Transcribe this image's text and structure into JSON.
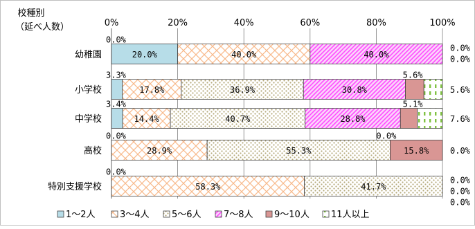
{
  "chart_data": {
    "type": "bar",
    "stacked": true,
    "percent": true,
    "orientation": "horizontal",
    "title": "",
    "category_axis_title": "校種別\n（延べ人数）",
    "xlim": [
      0,
      100
    ],
    "x_ticks": [
      "0%",
      "20%",
      "40%",
      "60%",
      "80%",
      "100%"
    ],
    "categories": [
      "幼稚園",
      "小学校",
      "中学校",
      "高校",
      "特別支援学校"
    ],
    "legend_position": "bottom",
    "series": [
      {
        "name": "1〜2人",
        "color": "#b7dde8",
        "pattern": "solid",
        "values": [
          20.0,
          3.3,
          3.4,
          0.0,
          0.0
        ]
      },
      {
        "name": "3〜4人",
        "color": "#f9c7a3",
        "pattern": "crosshatch",
        "values": [
          40.0,
          17.8,
          14.4,
          28.9,
          58.3
        ]
      },
      {
        "name": "5〜6人",
        "color": "#c4bd97",
        "pattern": "dots",
        "values": [
          0.0,
          36.9,
          40.7,
          55.3,
          41.7
        ]
      },
      {
        "name": "7〜8人",
        "color": "#ff66ff",
        "pattern": "diagonal",
        "values": [
          40.0,
          30.8,
          28.8,
          0.0,
          0.0
        ]
      },
      {
        "name": "9〜10人",
        "color": "#d99694",
        "pattern": "solid",
        "values": [
          0.0,
          5.6,
          5.1,
          15.8,
          0.0
        ]
      },
      {
        "name": "11人以上",
        "color": "#92d050",
        "pattern": "dashes",
        "values": [
          0.0,
          5.6,
          7.6,
          0.0,
          0.0
        ]
      }
    ],
    "labels": {
      "幼稚園": {
        "inside": [
          "20.0%",
          "40.0%",
          "",
          "40.0%",
          "",
          ""
        ],
        "above": "0.0%",
        "right": [
          "0.0%",
          "0.0%"
        ]
      },
      "小学校": {
        "inside": [
          "",
          "17.8%",
          "36.9%",
          "30.8%",
          "",
          ""
        ],
        "above": "3.3%",
        "above_right": "5.6%",
        "right": [
          "5.6%"
        ]
      },
      "中学校": {
        "inside": [
          "",
          "14.4%",
          "40.7%",
          "28.8%",
          "",
          ""
        ],
        "above": "3.4%",
        "above_right": "5.1%",
        "right": [
          "7.6%"
        ]
      },
      "高校": {
        "inside": [
          "",
          "28.9%",
          "55.3%",
          "",
          "15.8%",
          ""
        ],
        "above": "0.0%",
        "above_mid": "0.0%",
        "right": [
          "0.0%"
        ]
      },
      "特別支援学校": {
        "inside": [
          "",
          "58.3%",
          "41.7%",
          "",
          "",
          ""
        ],
        "above": "0.0%",
        "right": [
          "0.0%",
          "0.0%",
          "0.0%"
        ]
      }
    }
  }
}
